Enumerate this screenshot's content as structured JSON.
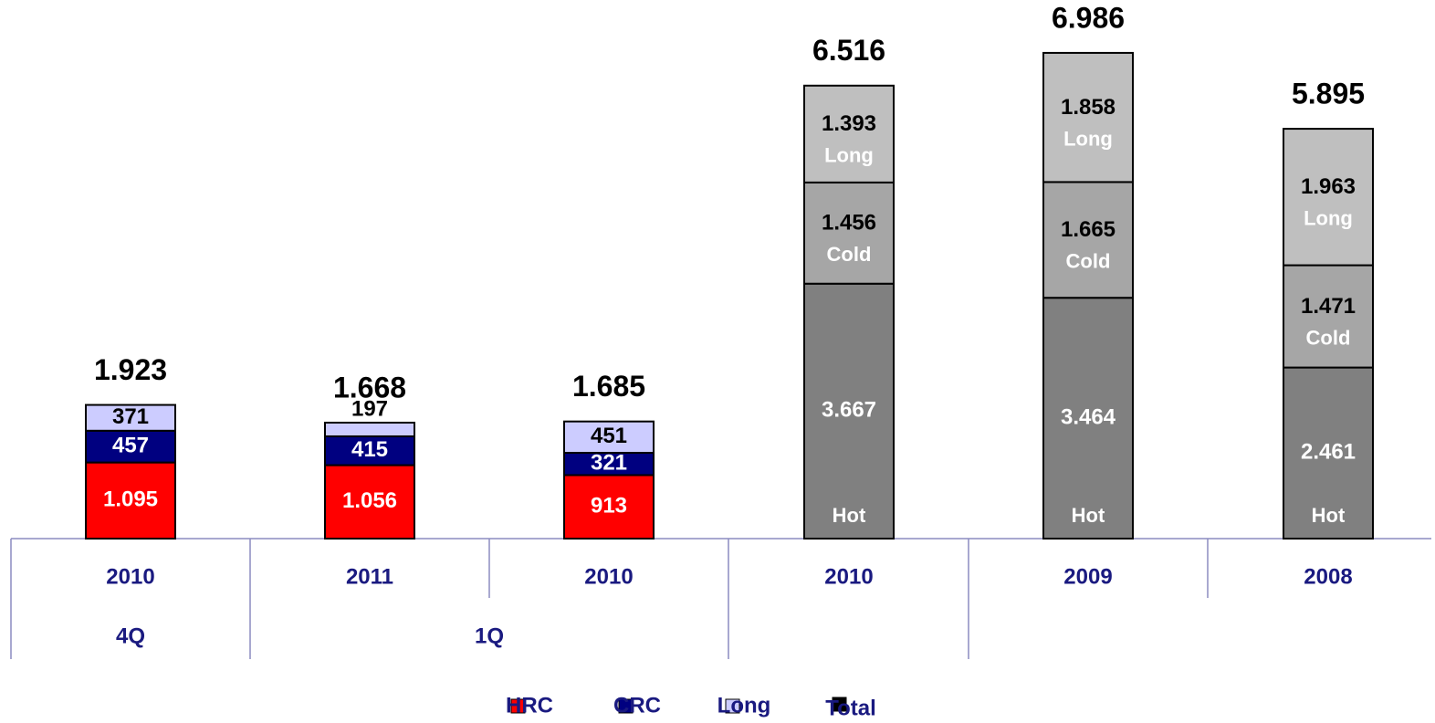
{
  "chart_data": {
    "type": "stacked_bar",
    "categories": [
      "2010",
      "2011",
      "2010",
      "2010",
      "2009",
      "2008"
    ],
    "category_groups": [
      "4Q",
      "1Q",
      "1Q",
      null,
      null,
      null
    ],
    "series": [
      {
        "name": "HRC",
        "color": "#ff0000",
        "colors": [
          "#ff0000",
          "#ff0000",
          "#ff0000",
          "#808080",
          "#808080",
          "#808080"
        ],
        "values": [
          1095,
          1056,
          913,
          3667,
          3464,
          2461
        ],
        "value_labels": [
          "1.095",
          "1.056",
          "913",
          "3.667",
          "3.464",
          "2.461"
        ],
        "inner_labels": [
          null,
          null,
          null,
          "Hot",
          "Hot",
          "Hot"
        ]
      },
      {
        "name": "CRC",
        "color": "#000080",
        "colors": [
          "#000080",
          "#000080",
          "#000080",
          "#a6a6a6",
          "#a6a6a6",
          "#a6a6a6"
        ],
        "values": [
          457,
          415,
          321,
          1456,
          1665,
          1471
        ],
        "value_labels": [
          "457",
          "415",
          "321",
          "1.456",
          "1.665",
          "1.471"
        ],
        "inner_labels": [
          null,
          null,
          null,
          "Cold",
          "Cold",
          "Cold"
        ]
      },
      {
        "name": "Long",
        "color": "#ccccff",
        "colors": [
          "#ccccff",
          "#ccccff",
          "#ccccff",
          "#bfbfbf",
          "#bfbfbf",
          "#bfbfbf"
        ],
        "values": [
          371,
          197,
          451,
          1393,
          1858,
          1963
        ],
        "value_labels": [
          "371",
          "197",
          "451",
          "1.393",
          "1.858",
          "1.963"
        ],
        "inner_labels": [
          null,
          null,
          null,
          "Long",
          "Long",
          "Long"
        ]
      }
    ],
    "total": {
      "name": "Total",
      "color": "#000000",
      "values": [
        1923,
        1668,
        1685,
        6516,
        6986,
        5895
      ],
      "value_labels": [
        "1.923",
        "1.668",
        "1.685",
        "6.516",
        "6.986",
        "5.895"
      ]
    }
  }
}
